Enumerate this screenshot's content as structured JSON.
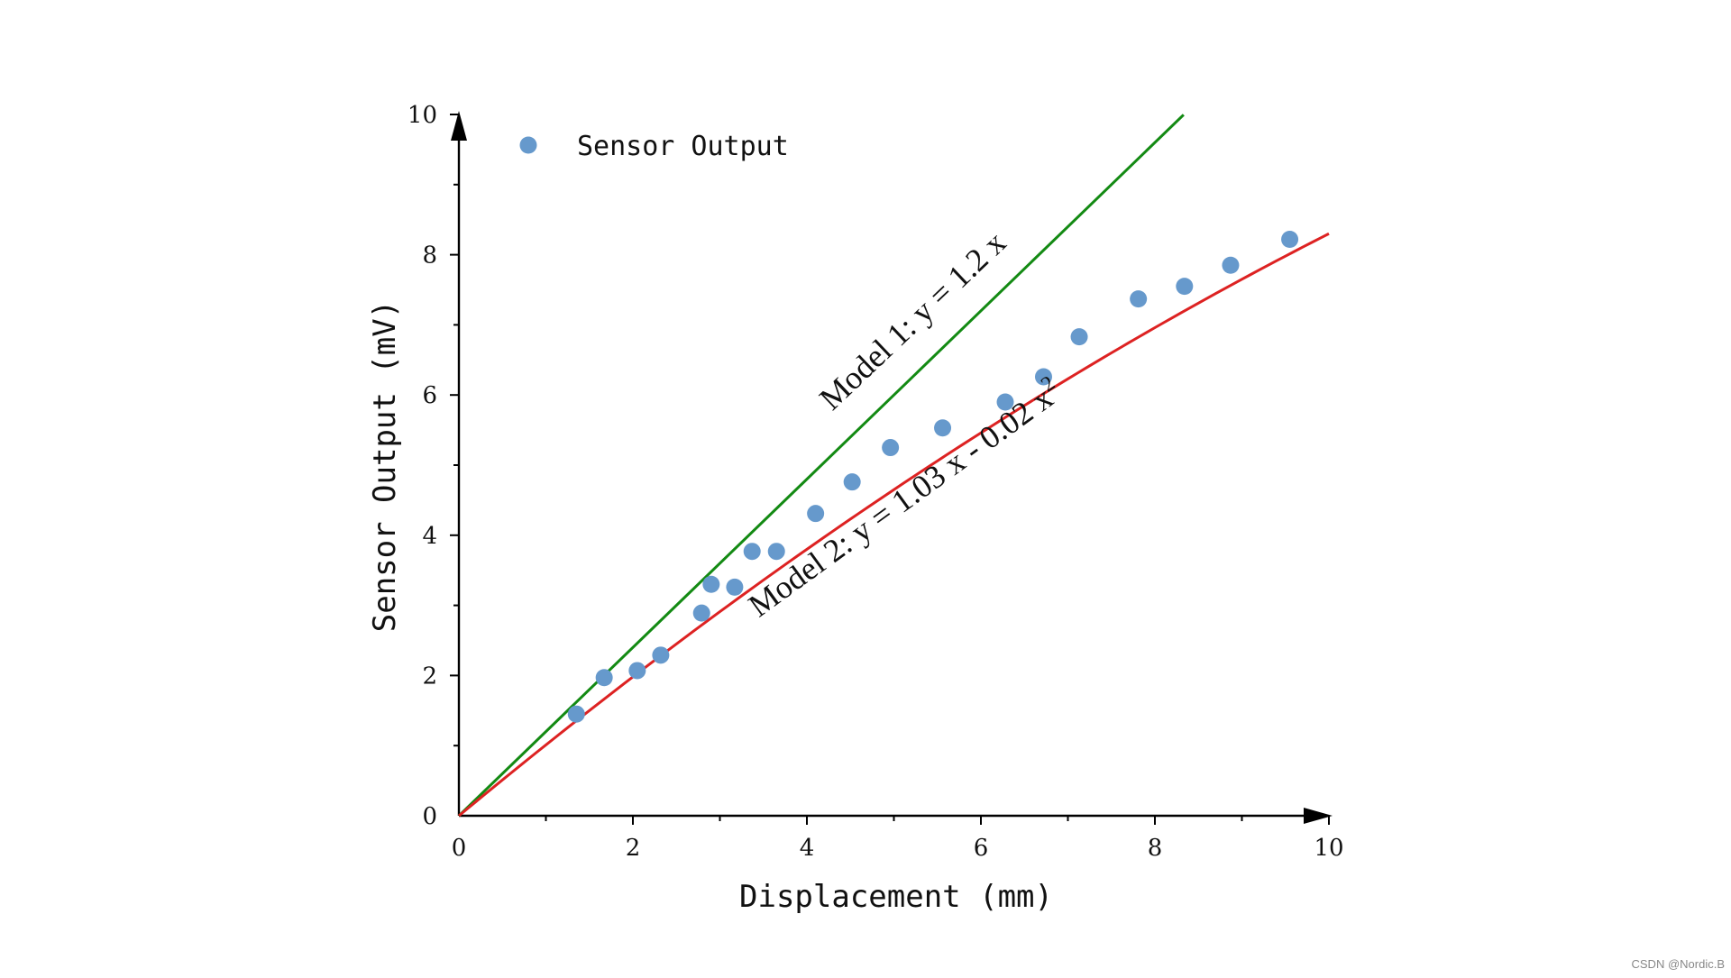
{
  "chart_data": {
    "type": "scatter",
    "title": "",
    "xlabel": "Displacement (mm)",
    "ylabel": "Sensor Output (mV)",
    "xlim": [
      0,
      10
    ],
    "ylim": [
      0,
      10
    ],
    "x_ticks": [
      0,
      2,
      4,
      6,
      8,
      10
    ],
    "y_ticks": [
      0,
      2,
      4,
      6,
      8,
      10
    ],
    "x_tick_labels": [
      "0",
      "2",
      "4",
      "6",
      "8",
      "10"
    ],
    "y_tick_labels": [
      "0",
      "2",
      "4",
      "6",
      "8",
      "10"
    ],
    "grid": false,
    "legend": {
      "placement": "top-left",
      "entries": [
        {
          "label": "Sensor Output",
          "marker": "circle"
        }
      ]
    },
    "series": [
      {
        "name": "Sensor Output",
        "kind": "scatter",
        "color": "#6699cc",
        "points": [
          {
            "x": 1.35,
            "y": 1.45
          },
          {
            "x": 1.67,
            "y": 1.97
          },
          {
            "x": 2.05,
            "y": 2.07
          },
          {
            "x": 2.32,
            "y": 2.29
          },
          {
            "x": 2.79,
            "y": 2.89
          },
          {
            "x": 2.9,
            "y": 3.3
          },
          {
            "x": 3.17,
            "y": 3.26
          },
          {
            "x": 3.37,
            "y": 3.77
          },
          {
            "x": 3.65,
            "y": 3.77
          },
          {
            "x": 4.1,
            "y": 4.31
          },
          {
            "x": 4.52,
            "y": 4.76
          },
          {
            "x": 4.96,
            "y": 5.25
          },
          {
            "x": 5.56,
            "y": 5.53
          },
          {
            "x": 6.28,
            "y": 5.9
          },
          {
            "x": 6.72,
            "y": 6.26
          },
          {
            "x": 7.13,
            "y": 6.83
          },
          {
            "x": 7.81,
            "y": 7.37
          },
          {
            "x": 8.34,
            "y": 7.55
          },
          {
            "x": 8.87,
            "y": 7.85
          },
          {
            "x": 9.55,
            "y": 8.22
          }
        ]
      },
      {
        "name": "Model 1",
        "kind": "line",
        "color": "#138a13",
        "equation": "y = 1.2 x",
        "x_range": [
          0,
          8.33
        ],
        "coefficients": {
          "a": 1.2
        }
      },
      {
        "name": "Model 2",
        "kind": "line",
        "color": "#dd2222",
        "equation": "y = 1.03 x - 0.02 x²",
        "x_range": [
          0,
          10
        ],
        "coefficients": {
          "a": 1.03,
          "b": -0.02
        }
      }
    ],
    "annotations": [
      {
        "name": "model-1",
        "text": "Model 1: y = 1.2 x",
        "x": 5.3,
        "y": 6.95,
        "angle_deg": -43.5
      },
      {
        "name": "model-2",
        "prefix": "Model 2: y = 1.03 x - 0.02 x",
        "sup": "2",
        "x": 5.2,
        "y": 4.4,
        "angle_deg": -36
      }
    ]
  },
  "watermark": "CSDN @Nordic.B"
}
